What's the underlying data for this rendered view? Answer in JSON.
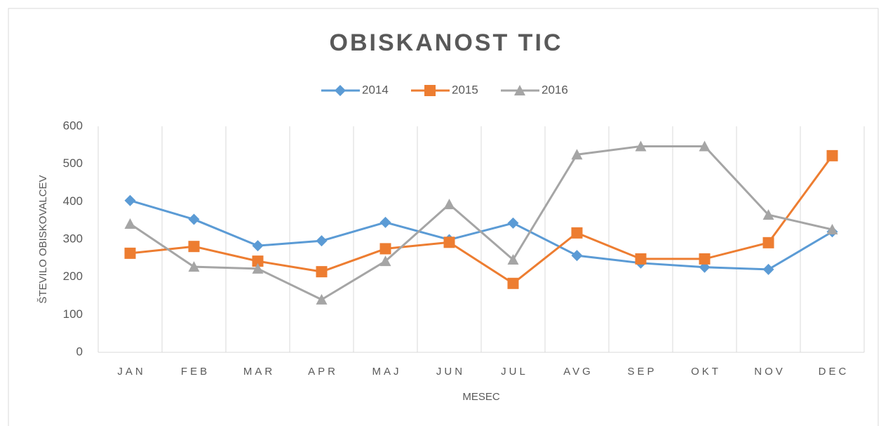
{
  "chart_data": {
    "type": "line",
    "title": "OBISKANOST TIC",
    "x_label": "MESEC",
    "y_label": "ŠTEVILO OBISKOVALCEV",
    "categories": [
      "JAN",
      "FEB",
      "MAR",
      "APR",
      "MAJ",
      "JUN",
      "JUL",
      "AVG",
      "SEP",
      "OKT",
      "NOV",
      "DEC"
    ],
    "series": [
      {
        "name": "2014",
        "color": "#5b9bd5",
        "marker": "diamond",
        "values": [
          403,
          353,
          283,
          296,
          345,
          299,
          343,
          257,
          237,
          226,
          220,
          320
        ]
      },
      {
        "name": "2015",
        "color": "#ed7d31",
        "marker": "square",
        "values": [
          263,
          281,
          242,
          214,
          275,
          292,
          183,
          317,
          248,
          248,
          291,
          522
        ]
      },
      {
        "name": "2016",
        "color": "#a5a5a5",
        "marker": "triangle",
        "values": [
          341,
          227,
          222,
          140,
          242,
          393,
          246,
          525,
          547,
          547,
          365,
          326
        ]
      }
    ],
    "ylim": [
      0,
      600
    ],
    "yticks": [
      0,
      100,
      200,
      300,
      400,
      500,
      600
    ],
    "grid": "vertical",
    "legend": "top"
  }
}
